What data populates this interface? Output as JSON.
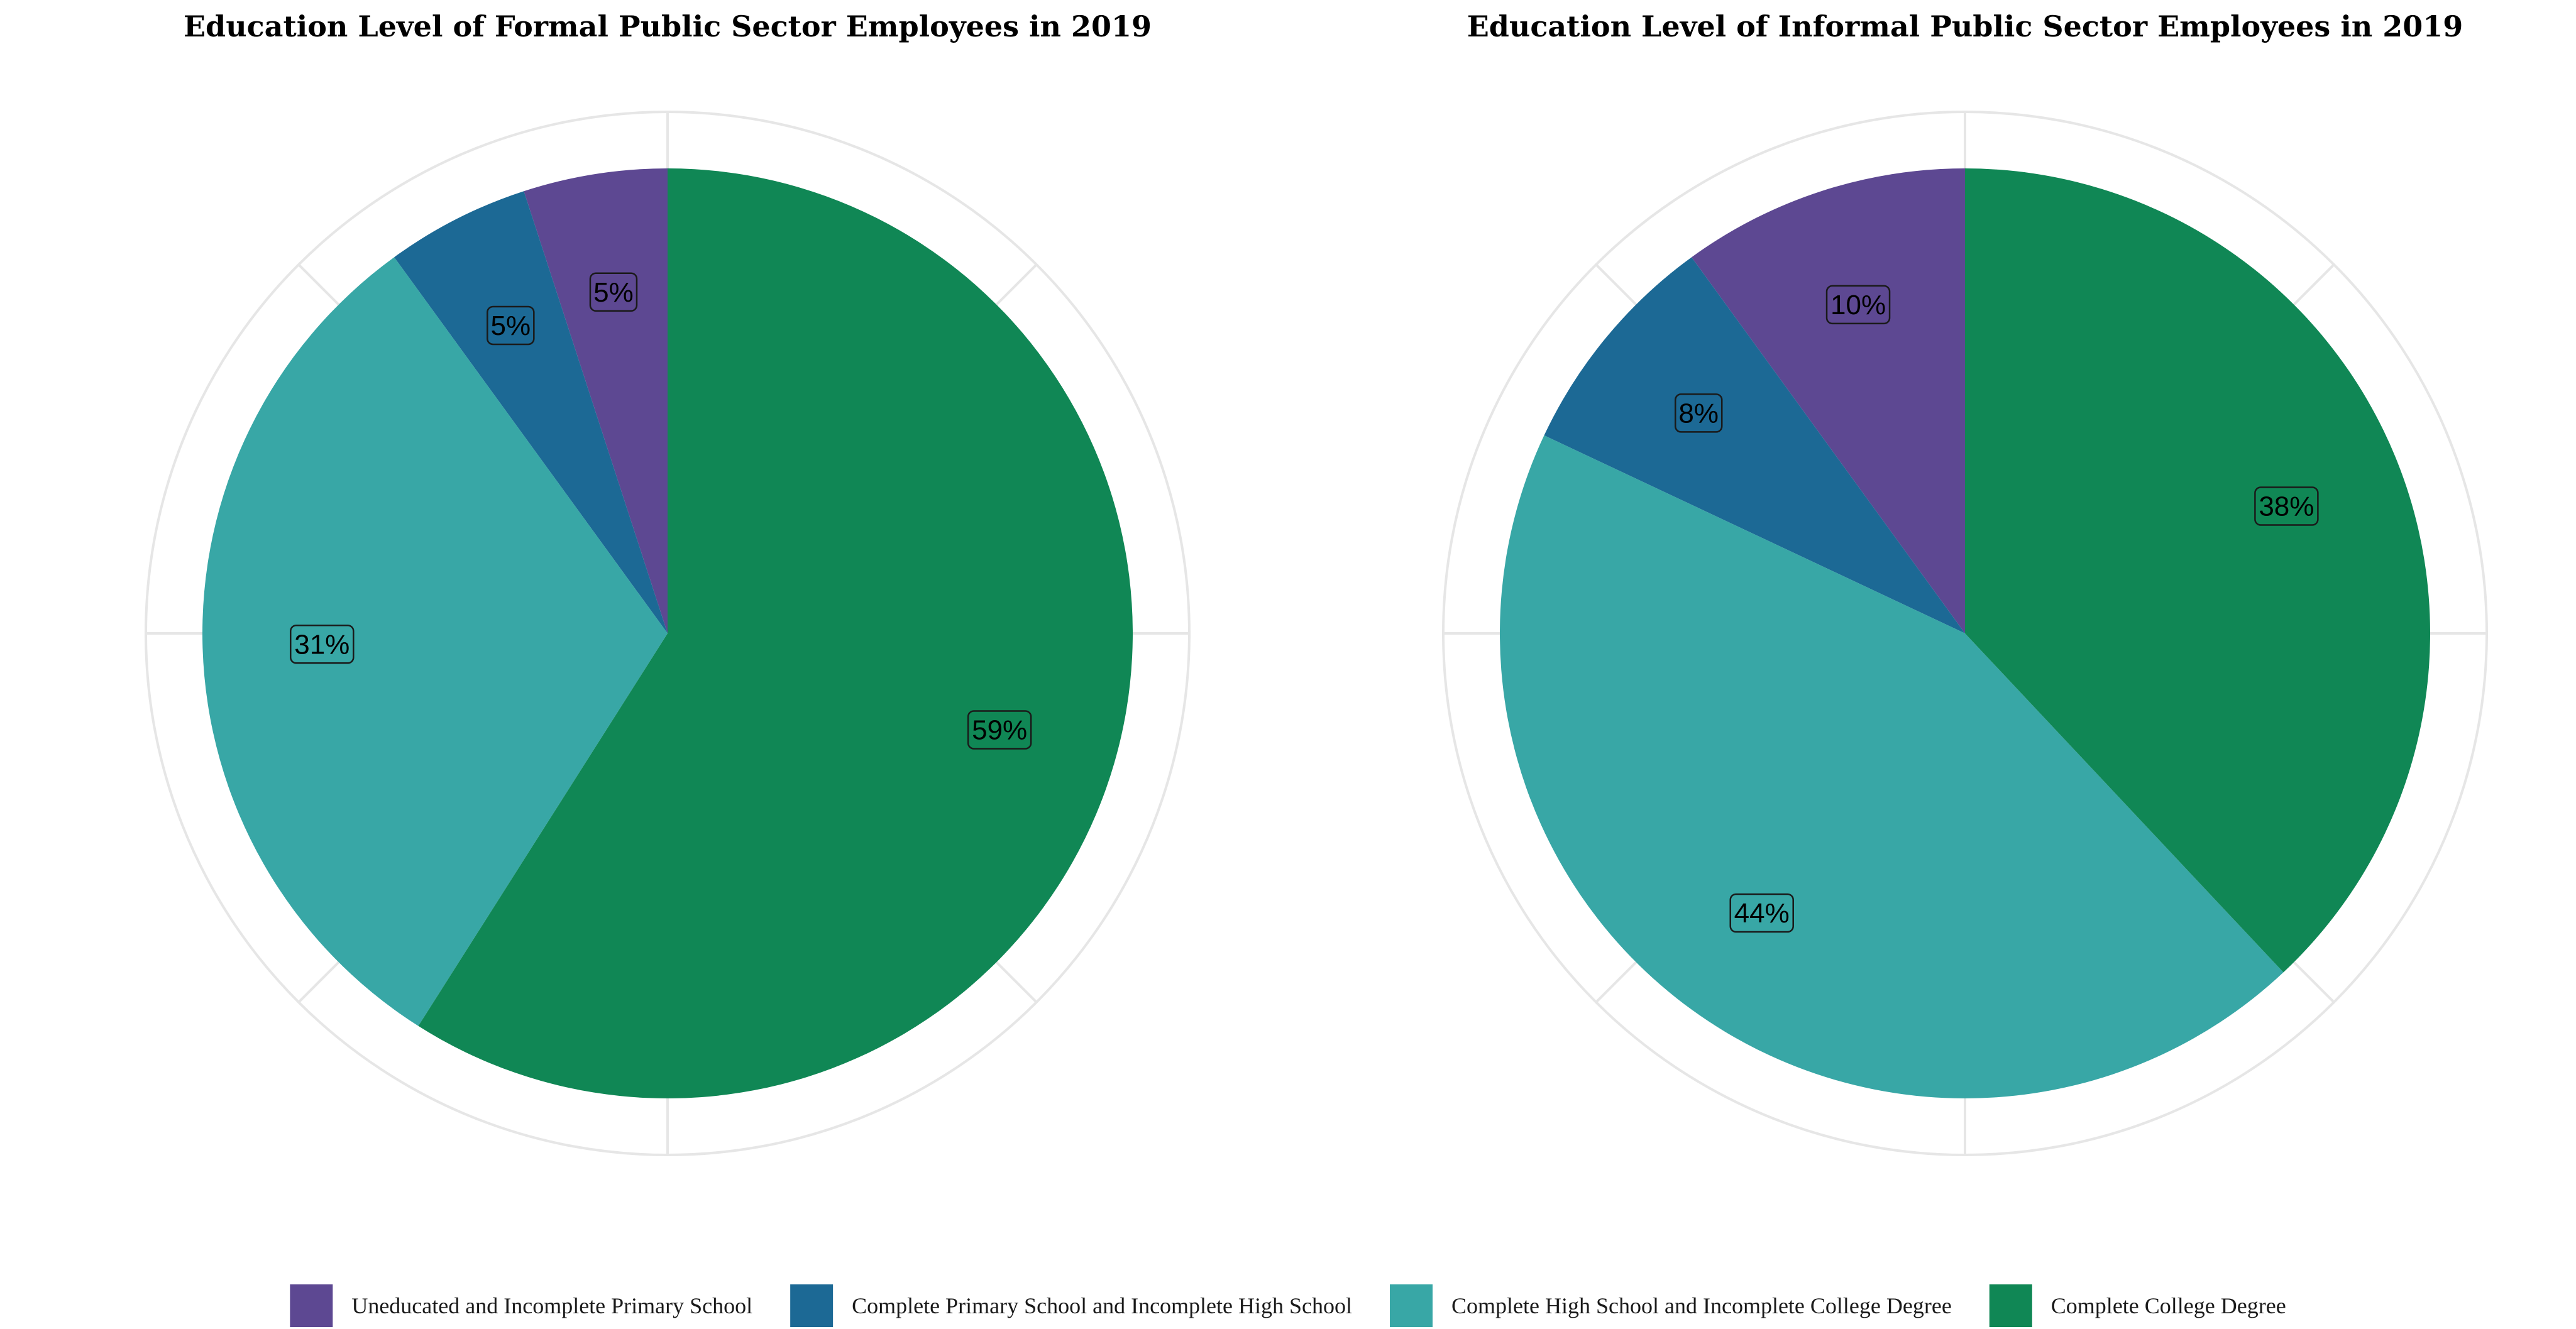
{
  "legend": {
    "placement": "bottom",
    "entries": [
      {
        "label": "Uneducated and Incomplete Primary School",
        "color": "#5D4892"
      },
      {
        "label": "Complete Primary School and Incomplete High School",
        "color": "#1C6995"
      },
      {
        "label": "Complete High School and Incomplete College Degree",
        "color": "#38A7A6"
      },
      {
        "label": "Complete College Degree",
        "color": "#108755"
      }
    ]
  },
  "chart_data": [
    {
      "type": "pie",
      "title": "Education Level of Formal Public Sector Employees in 2019",
      "grid": true,
      "categories": [
        "Uneducated and Incomplete Primary School",
        "Complete Primary School and Incomplete High School",
        "Complete High School and Incomplete College Degree",
        "Complete College Degree"
      ],
      "values": [
        5,
        5,
        31,
        59
      ],
      "labels": [
        "5%",
        "5%",
        "31%",
        "59%"
      ]
    },
    {
      "type": "pie",
      "title": "Education Level of Informal Public Sector Employees in 2019",
      "grid": true,
      "categories": [
        "Uneducated and Incomplete Primary School",
        "Complete Primary School and Incomplete High School",
        "Complete High School and Incomplete College Degree",
        "Complete College Degree"
      ],
      "values": [
        10,
        8,
        44,
        38
      ],
      "labels": [
        "10%",
        "8%",
        "44%",
        "38%"
      ]
    }
  ]
}
